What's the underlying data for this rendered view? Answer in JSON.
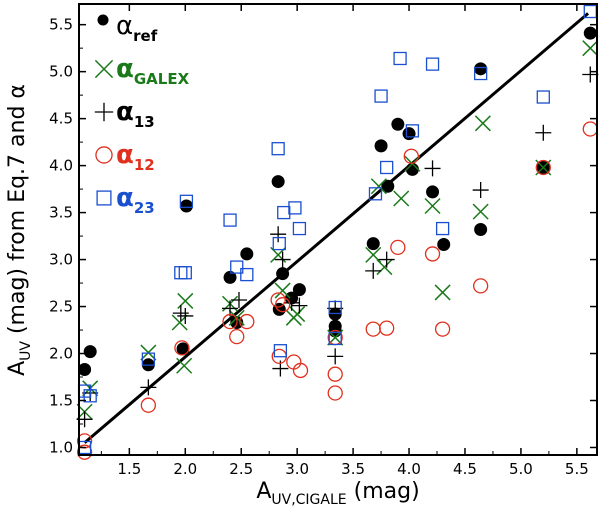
{
  "chart_data": {
    "type": "scatter",
    "xlabel": "A",
    "xlabel_sub": "UV,CIGALE",
    "xlabel_unit": " (mag)",
    "ylabel": "A",
    "ylabel_sub": "UV",
    "ylabel_rest": " (mag) from Eq.7 and α",
    "xlim": [
      1.05,
      5.68
    ],
    "ylim": [
      0.92,
      5.72
    ],
    "xticks": [
      "1.5",
      "2.0",
      "2.5",
      "3.0",
      "3.5",
      "4.0",
      "4.5",
      "5.0",
      "5.5"
    ],
    "yticks": [
      "1.0",
      "1.5",
      "2.0",
      "2.5",
      "3.0",
      "3.5",
      "4.0",
      "4.5",
      "5.0",
      "5.5"
    ],
    "grid": false,
    "legend_position": "top-left",
    "fit_line": {
      "x": [
        1.1,
        5.6
      ],
      "y": [
        1.05,
        5.62
      ],
      "color": "#000000"
    },
    "series": [
      {
        "name": "α",
        "sub": "ref",
        "marker": "filled-circle",
        "color": "#000000",
        "points": [
          [
            1.1,
            1.83
          ],
          [
            1.15,
            2.02
          ],
          [
            1.67,
            1.88
          ],
          [
            1.98,
            2.05
          ],
          [
            2.01,
            3.57
          ],
          [
            2.4,
            2.81
          ],
          [
            2.46,
            2.33
          ],
          [
            2.55,
            3.06
          ],
          [
            2.83,
            3.83
          ],
          [
            2.84,
            2.47
          ],
          [
            2.87,
            2.85
          ],
          [
            2.95,
            2.59
          ],
          [
            3.02,
            2.68
          ],
          [
            3.34,
            2.24
          ],
          [
            3.34,
            2.29
          ],
          [
            3.34,
            2.42
          ],
          [
            3.68,
            3.17
          ],
          [
            3.75,
            4.21
          ],
          [
            3.81,
            3.78
          ],
          [
            3.9,
            4.44
          ],
          [
            4.0,
            4.34
          ],
          [
            4.03,
            3.96
          ],
          [
            4.21,
            3.72
          ],
          [
            4.31,
            3.16
          ],
          [
            4.64,
            3.32
          ],
          [
            4.64,
            5.03
          ],
          [
            5.2,
            3.98
          ],
          [
            5.62,
            5.41
          ]
        ]
      },
      {
        "name": "α",
        "sub": "GALEX",
        "marker": "x",
        "color": "#1a7a1a",
        "points": [
          [
            1.1,
            1.38
          ],
          [
            1.15,
            1.63
          ],
          [
            1.67,
            2.01
          ],
          [
            1.95,
            2.33
          ],
          [
            1.99,
            1.87
          ],
          [
            2.0,
            2.56
          ],
          [
            2.4,
            2.53
          ],
          [
            2.46,
            2.38
          ],
          [
            2.83,
            3.05
          ],
          [
            2.87,
            2.67
          ],
          [
            2.97,
            2.38
          ],
          [
            3.0,
            2.42
          ],
          [
            3.34,
            2.17
          ],
          [
            3.68,
            3.05
          ],
          [
            3.73,
            3.78
          ],
          [
            3.78,
            2.92
          ],
          [
            3.93,
            3.65
          ],
          [
            4.03,
            4.02
          ],
          [
            4.21,
            3.57
          ],
          [
            4.3,
            2.65
          ],
          [
            4.64,
            3.51
          ],
          [
            4.66,
            4.45
          ],
          [
            5.2,
            3.98
          ],
          [
            5.62,
            5.25
          ]
        ]
      },
      {
        "name": "α",
        "sub": "13",
        "marker": "plus",
        "color": "#000000",
        "points": [
          [
            1.1,
            1.3
          ],
          [
            1.15,
            1.58
          ],
          [
            1.67,
            1.64
          ],
          [
            1.96,
            2.43
          ],
          [
            2.0,
            2.4
          ],
          [
            2.4,
            2.48
          ],
          [
            2.48,
            2.57
          ],
          [
            2.83,
            3.27
          ],
          [
            2.85,
            1.84
          ],
          [
            2.87,
            3.0
          ],
          [
            2.95,
            2.54
          ],
          [
            3.02,
            2.51
          ],
          [
            3.34,
            1.97
          ],
          [
            3.34,
            2.48
          ],
          [
            3.68,
            2.88
          ],
          [
            3.8,
            3.0
          ],
          [
            4.21,
            3.97
          ],
          [
            4.64,
            3.74
          ],
          [
            5.2,
            4.35
          ],
          [
            5.62,
            4.97
          ]
        ]
      },
      {
        "name": "α",
        "sub": "12",
        "marker": "open-circle",
        "color": "#e0301e",
        "points": [
          [
            1.1,
            0.95
          ],
          [
            1.1,
            1.07
          ],
          [
            1.67,
            1.45
          ],
          [
            1.97,
            2.06
          ],
          [
            2.4,
            2.34
          ],
          [
            2.46,
            2.18
          ],
          [
            2.55,
            2.34
          ],
          [
            2.83,
            2.57
          ],
          [
            2.84,
            1.97
          ],
          [
            2.87,
            2.52
          ],
          [
            2.97,
            1.91
          ],
          [
            3.03,
            1.82
          ],
          [
            3.34,
            1.58
          ],
          [
            3.34,
            1.78
          ],
          [
            3.34,
            2.17
          ],
          [
            3.68,
            2.26
          ],
          [
            3.8,
            2.27
          ],
          [
            3.9,
            3.13
          ],
          [
            4.02,
            4.1
          ],
          [
            4.21,
            3.06
          ],
          [
            4.3,
            2.26
          ],
          [
            4.64,
            2.72
          ],
          [
            5.2,
            3.98
          ],
          [
            5.62,
            4.39
          ]
        ]
      },
      {
        "name": "α",
        "sub": "23",
        "marker": "open-square",
        "color": "#1a4fcf",
        "points": [
          [
            1.1,
            1.0
          ],
          [
            1.1,
            1.6
          ],
          [
            1.15,
            1.55
          ],
          [
            1.67,
            1.94
          ],
          [
            1.96,
            2.86
          ],
          [
            2.0,
            2.86
          ],
          [
            2.01,
            3.62
          ],
          [
            2.4,
            3.42
          ],
          [
            2.46,
            2.92
          ],
          [
            2.55,
            2.84
          ],
          [
            2.83,
            4.18
          ],
          [
            2.84,
            3.17
          ],
          [
            2.85,
            2.03
          ],
          [
            2.88,
            3.5
          ],
          [
            2.98,
            3.55
          ],
          [
            3.02,
            3.33
          ],
          [
            3.34,
            2.49
          ],
          [
            3.34,
            2.16
          ],
          [
            3.7,
            3.7
          ],
          [
            3.75,
            4.74
          ],
          [
            3.8,
            3.98
          ],
          [
            3.92,
            5.14
          ],
          [
            4.03,
            4.37
          ],
          [
            4.21,
            5.08
          ],
          [
            4.3,
            3.33
          ],
          [
            4.64,
            4.98
          ],
          [
            5.2,
            4.73
          ],
          [
            5.62,
            5.64
          ]
        ]
      }
    ]
  }
}
